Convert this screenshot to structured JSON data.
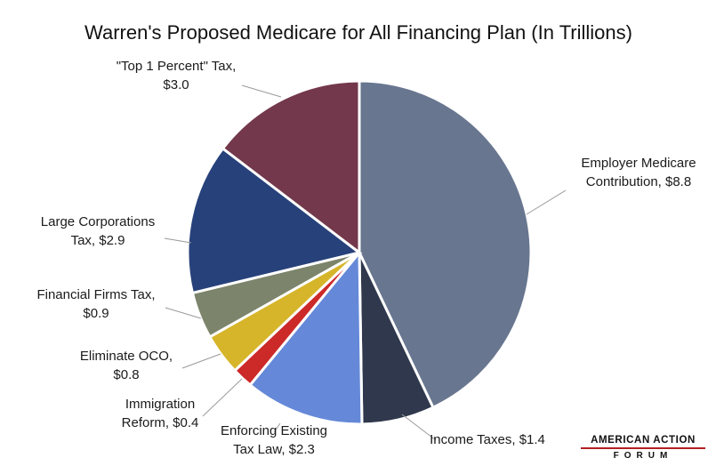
{
  "chart_data": {
    "type": "pie",
    "title": "Warren's Proposed Medicare for All Financing Plan (In Trillions)",
    "slices": [
      {
        "label_lines": [
          "Employer Medicare",
          "Contribution, $8.8"
        ],
        "value": 8.8,
        "color": "#68768f"
      },
      {
        "label_lines": [
          "Income Taxes, $1.4"
        ],
        "value": 1.4,
        "color": "#2f384c"
      },
      {
        "label_lines": [
          "Enforcing Existing",
          "Tax Law, $2.3"
        ],
        "value": 2.3,
        "color": "#6589d8"
      },
      {
        "label_lines": [
          "Immigration",
          "Reform, $0.4"
        ],
        "value": 0.4,
        "color": "#cc2929"
      },
      {
        "label_lines": [
          "Eliminate OCO,",
          "$0.8"
        ],
        "value": 0.8,
        "color": "#d6b52a"
      },
      {
        "label_lines": [
          "Financial Firms Tax,",
          "$0.9"
        ],
        "value": 0.9,
        "color": "#7c846b"
      },
      {
        "label_lines": [
          "Large Corporations",
          "Tax, $2.9"
        ],
        "value": 2.9,
        "color": "#27417a"
      },
      {
        "label_lines": [
          "\"Top 1 Percent\" Tax,",
          "$3.0"
        ],
        "value": 3.0,
        "color": "#73384b"
      }
    ]
  },
  "logo": {
    "line1": "AMERICAN ACTION",
    "line2": "FORUM",
    "accent_color": "#b32025"
  }
}
